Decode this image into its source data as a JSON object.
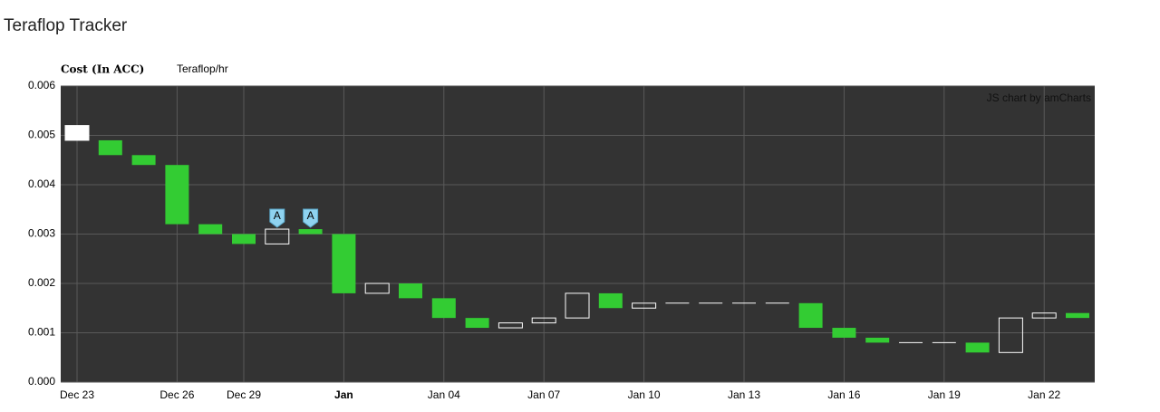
{
  "chart_data": {
    "type": "candlestick",
    "title": "Teraflop Tracker",
    "legend": [
      "Cost (In ACC)",
      "Teraflop/hr"
    ],
    "credit": "JS chart by amCharts",
    "categories": [
      "Dec 23",
      null,
      null,
      "Dec 26",
      null,
      "Dec 29",
      null,
      null,
      "Jan",
      null,
      null,
      "Jan 04",
      null,
      null,
      "Jan 07",
      null,
      null,
      "Jan 10",
      null,
      null,
      "Jan 13",
      null,
      null,
      "Jan 16",
      null,
      null,
      "Jan 19",
      null,
      null,
      "Jan 22",
      null
    ],
    "open": [
      0.0049,
      0.0049,
      0.0046,
      0.0044,
      0.0032,
      0.003,
      0.0028,
      0.0031,
      0.003,
      0.0018,
      0.002,
      0.0017,
      0.0013,
      0.0011,
      0.0012,
      0.0013,
      0.0018,
      0.0015,
      0.0016,
      0.0016,
      0.0016,
      0.0016,
      0.0016,
      0.0011,
      0.0009,
      0.0008,
      0.0008,
      0.0008,
      0.0006,
      0.0013,
      0.0014
    ],
    "close": [
      0.0052,
      0.0046,
      0.0044,
      0.0032,
      0.003,
      0.0028,
      0.0031,
      0.003,
      0.0018,
      0.002,
      0.0017,
      0.0013,
      0.0011,
      0.0012,
      0.0013,
      0.0018,
      0.0015,
      0.0016,
      0.0016,
      0.0016,
      0.0016,
      0.0016,
      0.0011,
      0.0009,
      0.0008,
      0.0008,
      0.0008,
      0.0006,
      0.0013,
      0.0014,
      0.0013
    ],
    "up_color": "#ffffff",
    "down_color": "#33cc33",
    "annotations": [
      {
        "text": "A",
        "category_index": 6
      },
      {
        "text": "A",
        "category_index": 7
      }
    ],
    "ylim": [
      0,
      0.006
    ],
    "yticks": [
      {
        "value": 0,
        "label": "0.000"
      },
      {
        "value": 0.001,
        "label": "0.001"
      },
      {
        "value": 0.002,
        "label": "0.002"
      },
      {
        "value": 0.003,
        "label": "0.003"
      },
      {
        "value": 0.004,
        "label": "0.004"
      },
      {
        "value": 0.005,
        "label": "0.005"
      },
      {
        "value": 0.006,
        "label": "0.006"
      }
    ],
    "grid": true
  }
}
